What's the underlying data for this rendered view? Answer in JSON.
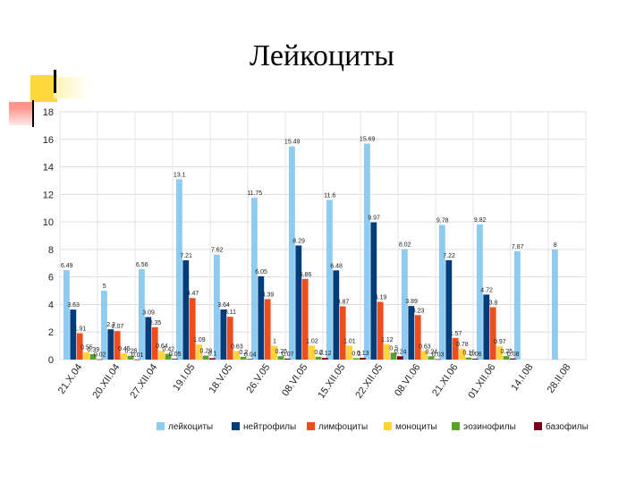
{
  "page": {
    "title": "Лейкоциты"
  },
  "chart_data": {
    "type": "bar",
    "title": "",
    "xlabel": "",
    "ylabel": "",
    "ylim": [
      0,
      18
    ],
    "yticks": [
      0,
      2,
      4,
      6,
      8,
      10,
      12,
      14,
      16,
      18
    ],
    "grid": true,
    "legend_position": "bottom",
    "categories": [
      "21.X.04",
      "20.XII.04",
      "27.XII.04",
      "19.I.05",
      "18.V.05",
      "26.V.05",
      "08.VI.05",
      "15.XII.05",
      "22.XII.05",
      "08.VI.06",
      "21.XI.06",
      "01.XII.06",
      "14.I.08",
      "28.II.08"
    ],
    "series": [
      {
        "name": "лейкоциты",
        "color": "#8ecbf0",
        "values": [
          6.49,
          5,
          6.56,
          13.1,
          7.62,
          11.75,
          15.49,
          11.6,
          15.69,
          8.02,
          9.78,
          9.82,
          7.87,
          8
        ],
        "labels": [
          "6.49",
          "5",
          "6.56",
          "13.1",
          "7.62",
          "11.75",
          "15.49",
          "11.6",
          "15.69",
          "8.02",
          "9.78",
          "9.82",
          "7.87",
          "8"
        ]
      },
      {
        "name": "нейтрофилы",
        "color": "#003d7a",
        "values": [
          3.63,
          2.2,
          3.09,
          7.21,
          3.64,
          6.05,
          8.29,
          6.48,
          9.97,
          3.89,
          7.22,
          4.72,
          null,
          null
        ],
        "labels": [
          "3.63",
          "2.2",
          "3.09",
          "7.21",
          "3.64",
          "6.05",
          "8.29",
          "6.48",
          "9.97",
          "3.89",
          "7.22",
          "4.72",
          "",
          ""
        ]
      },
      {
        "name": "лимфоциты",
        "color": "#f04c1c",
        "values": [
          1.91,
          2.07,
          2.35,
          4.47,
          3.11,
          4.39,
          5.86,
          3.87,
          4.19,
          3.23,
          1.57,
          3.8,
          null,
          null
        ],
        "labels": [
          "1.91",
          "2.07",
          "2.35",
          "4.47",
          "3.11",
          "4.39",
          "5.86",
          "3.87",
          "4.19",
          "3.23",
          "1.57",
          "3.8",
          "",
          ""
        ]
      },
      {
        "name": "моноциты",
        "color": "#ffd33d",
        "values": [
          0.55,
          0.45,
          0.64,
          1.09,
          0.63,
          1,
          1.02,
          1.01,
          1.12,
          0.63,
          0.78,
          0.97,
          null,
          null
        ],
        "labels": [
          "0.55",
          "0.45",
          "0.64",
          "1.09",
          "0.63",
          "1",
          "1.02",
          "1.01",
          "1.12",
          "0.63",
          "0.78",
          "0.97",
          "",
          ""
        ]
      },
      {
        "name": "эозинофилы",
        "color": "#5aa02c",
        "values": [
          0.39,
          0.28,
          0.42,
          0.29,
          0.2,
          0.25,
          0.2,
          0.1,
          0.5,
          0.24,
          0.15,
          0.25,
          null,
          null
        ],
        "labels": [
          "0.39",
          "0.28",
          "0.42",
          "0.29",
          "0.2",
          "0.25",
          "0.2",
          "0.1",
          "0.5",
          "0.24",
          "0.15",
          "0.25",
          "",
          ""
        ]
      },
      {
        "name": "базофилы",
        "color": "#7a0019",
        "values": [
          0.02,
          0.01,
          0.05,
          0.1,
          0.04,
          0.07,
          0.12,
          0.13,
          0.24,
          0.03,
          0.06,
          0.08,
          null,
          null
        ],
        "labels": [
          "0.02",
          "0.01",
          "0.05",
          "0.1",
          "0.04",
          "0.07",
          "0.12",
          "0.13",
          "0.24",
          "0.03",
          "0.06",
          "0.08",
          "",
          ""
        ]
      }
    ]
  }
}
